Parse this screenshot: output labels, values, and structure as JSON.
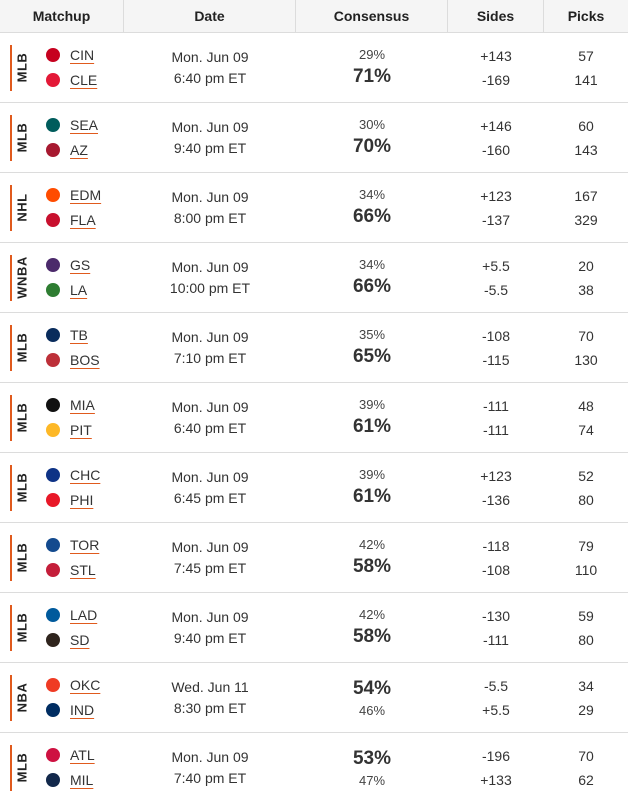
{
  "header": {
    "matchup": "Matchup",
    "date": "Date",
    "consensus": "Consensus",
    "sides": "Sides",
    "picks": "Picks"
  },
  "rows": [
    {
      "league": "MLB",
      "team1": {
        "abbr": "CIN",
        "color": "#c6011f"
      },
      "team2": {
        "abbr": "CLE",
        "color": "#e31937"
      },
      "date": "Mon. Jun 09",
      "time": "6:40 pm ET",
      "pct1": "29%",
      "pct2": "71%",
      "big": 2,
      "side1": "+143",
      "side2": "-169",
      "picks1": "57",
      "picks2": "141"
    },
    {
      "league": "MLB",
      "team1": {
        "abbr": "SEA",
        "color": "#005c5c"
      },
      "team2": {
        "abbr": "AZ",
        "color": "#a71930"
      },
      "date": "Mon. Jun 09",
      "time": "9:40 pm ET",
      "pct1": "30%",
      "pct2": "70%",
      "big": 2,
      "side1": "+146",
      "side2": "-160",
      "picks1": "60",
      "picks2": "143"
    },
    {
      "league": "NHL",
      "team1": {
        "abbr": "EDM",
        "color": "#ff4c00"
      },
      "team2": {
        "abbr": "FLA",
        "color": "#c8102e"
      },
      "date": "Mon. Jun 09",
      "time": "8:00 pm ET",
      "pct1": "34%",
      "pct2": "66%",
      "big": 2,
      "side1": "+123",
      "side2": "-137",
      "picks1": "167",
      "picks2": "329"
    },
    {
      "league": "WNBA",
      "team1": {
        "abbr": "GS",
        "color": "#4b2a6b"
      },
      "team2": {
        "abbr": "LA",
        "color": "#2e7d32"
      },
      "date": "Mon. Jun 09",
      "time": "10:00 pm ET",
      "pct1": "34%",
      "pct2": "66%",
      "big": 2,
      "side1": "+5.5",
      "side2": "-5.5",
      "picks1": "20",
      "picks2": "38"
    },
    {
      "league": "MLB",
      "team1": {
        "abbr": "TB",
        "color": "#092c5c"
      },
      "team2": {
        "abbr": "BOS",
        "color": "#bd3039"
      },
      "date": "Mon. Jun 09",
      "time": "7:10 pm ET",
      "pct1": "35%",
      "pct2": "65%",
      "big": 2,
      "side1": "-108",
      "side2": "-115",
      "picks1": "70",
      "picks2": "130"
    },
    {
      "league": "MLB",
      "team1": {
        "abbr": "MIA",
        "color": "#111111"
      },
      "team2": {
        "abbr": "PIT",
        "color": "#fdb827"
      },
      "date": "Mon. Jun 09",
      "time": "6:40 pm ET",
      "pct1": "39%",
      "pct2": "61%",
      "big": 2,
      "side1": "-111",
      "side2": "-111",
      "picks1": "48",
      "picks2": "74"
    },
    {
      "league": "MLB",
      "team1": {
        "abbr": "CHC",
        "color": "#0e3386"
      },
      "team2": {
        "abbr": "PHI",
        "color": "#e81828"
      },
      "date": "Mon. Jun 09",
      "time": "6:45 pm ET",
      "pct1": "39%",
      "pct2": "61%",
      "big": 2,
      "side1": "+123",
      "side2": "-136",
      "picks1": "52",
      "picks2": "80"
    },
    {
      "league": "MLB",
      "team1": {
        "abbr": "TOR",
        "color": "#134a8e"
      },
      "team2": {
        "abbr": "STL",
        "color": "#c41e3a"
      },
      "date": "Mon. Jun 09",
      "time": "7:45 pm ET",
      "pct1": "42%",
      "pct2": "58%",
      "big": 2,
      "side1": "-118",
      "side2": "-108",
      "picks1": "79",
      "picks2": "110"
    },
    {
      "league": "MLB",
      "team1": {
        "abbr": "LAD",
        "color": "#005a9c"
      },
      "team2": {
        "abbr": "SD",
        "color": "#2f241d"
      },
      "date": "Mon. Jun 09",
      "time": "9:40 pm ET",
      "pct1": "42%",
      "pct2": "58%",
      "big": 2,
      "side1": "-130",
      "side2": "-111",
      "picks1": "59",
      "picks2": "80"
    },
    {
      "league": "NBA",
      "team1": {
        "abbr": "OKC",
        "color": "#ef3b24"
      },
      "team2": {
        "abbr": "IND",
        "color": "#002d62"
      },
      "date": "Wed. Jun 11",
      "time": "8:30 pm ET",
      "pct1": "54%",
      "pct2": "46%",
      "big": 1,
      "side1": "-5.5",
      "side2": "+5.5",
      "picks1": "34",
      "picks2": "29"
    },
    {
      "league": "MLB",
      "team1": {
        "abbr": "ATL",
        "color": "#ce1141"
      },
      "team2": {
        "abbr": "MIL",
        "color": "#12284b"
      },
      "date": "Mon. Jun 09",
      "time": "7:40 pm ET",
      "pct1": "53%",
      "pct2": "47%",
      "big": 1,
      "side1": "-196",
      "side2": "+133",
      "picks1": "70",
      "picks2": "62"
    }
  ]
}
